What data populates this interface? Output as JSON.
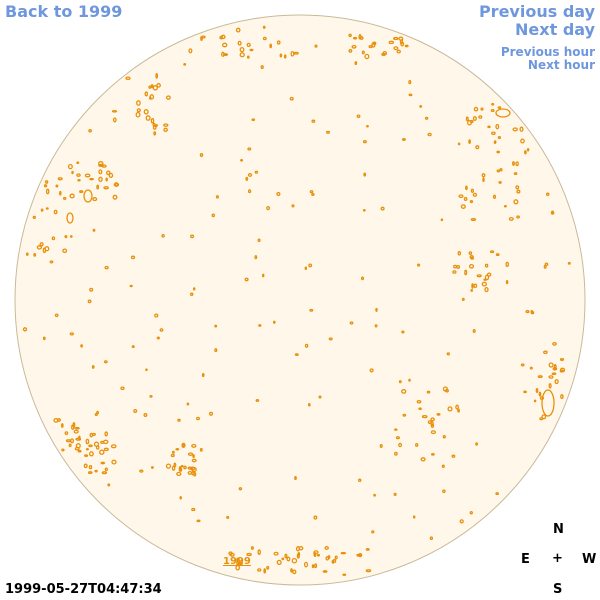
{
  "nav": {
    "back": "Back to 1999",
    "previous_day": "Previous day",
    "next_day": "Next day",
    "previous_hour": "Previous hour",
    "next_hour": "Next hour"
  },
  "compass": {
    "north": "N",
    "east": "E",
    "center": "+",
    "west": "W",
    "south": "S"
  },
  "timestamp": "1999-05-27T04:47:34",
  "year_label": "1999",
  "colors": {
    "link": "#6f97dd",
    "disk_fill": "#fff8ea",
    "disk_edge": "#c9b99a",
    "contour": "#e8900c"
  }
}
